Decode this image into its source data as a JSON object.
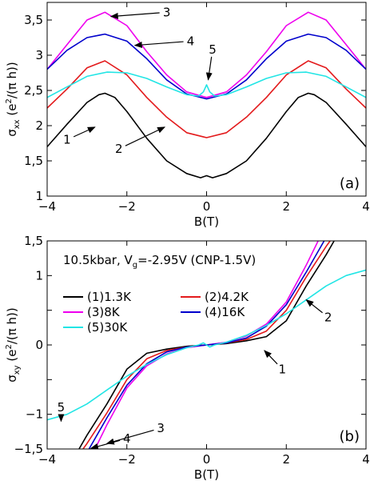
{
  "chart_data": [
    {
      "type": "line",
      "panel_label": "(a)",
      "xlabel": "B(T)",
      "ylabel": "σxx (e²/(π h))",
      "ylabel_parts": {
        "main": "σ",
        "sub": "xx",
        "rest": " (e",
        "sup": "2",
        "tail": "/(π h))"
      },
      "xlim": [
        -4,
        4
      ],
      "ylim": [
        1,
        3.75
      ],
      "xticks": [
        -4,
        -2,
        0,
        2,
        4
      ],
      "xtick_labels": [
        "−4",
        "−2",
        "0",
        "2",
        "4"
      ],
      "yticks": [
        1,
        1.5,
        2,
        2.5,
        3,
        3.5
      ],
      "ytick_labels": [
        "1",
        "1,5",
        "2",
        "2,5",
        "3",
        "3,5"
      ],
      "series": [
        {
          "color": "#000000",
          "x": [
            -4,
            -3.5,
            -3,
            -2.7,
            -2.55,
            -2.3,
            -2,
            -1.5,
            -1,
            -0.5,
            -0.15,
            0,
            0.15,
            0.5,
            1,
            1.5,
            2,
            2.3,
            2.55,
            2.7,
            3,
            3.5,
            4
          ],
          "y": [
            1.7,
            2.02,
            2.33,
            2.44,
            2.46,
            2.4,
            2.2,
            1.82,
            1.5,
            1.32,
            1.26,
            1.29,
            1.26,
            1.32,
            1.5,
            1.82,
            2.2,
            2.4,
            2.46,
            2.44,
            2.33,
            2.02,
            1.7
          ]
        },
        {
          "color": "#e31a1c",
          "x": [
            -4,
            -3.5,
            -3,
            -2.55,
            -2,
            -1.5,
            -1,
            -0.5,
            0,
            0.5,
            1,
            1.5,
            2,
            2.55,
            3,
            3.5,
            4
          ],
          "y": [
            2.25,
            2.52,
            2.82,
            2.92,
            2.72,
            2.4,
            2.12,
            1.9,
            1.83,
            1.9,
            2.12,
            2.4,
            2.72,
            2.92,
            2.82,
            2.52,
            2.25
          ]
        },
        {
          "color": "#ee00ee",
          "x": [
            -4,
            -3.5,
            -3,
            -2.55,
            -2,
            -1.5,
            -1,
            -0.5,
            0,
            0.5,
            1,
            1.5,
            2,
            2.55,
            3,
            3.5,
            4
          ],
          "y": [
            2.8,
            3.15,
            3.5,
            3.61,
            3.42,
            3.05,
            2.72,
            2.48,
            2.4,
            2.48,
            2.72,
            3.05,
            3.42,
            3.61,
            3.5,
            3.15,
            2.8
          ]
        },
        {
          "color": "#0000cc",
          "x": [
            -4,
            -3.5,
            -3,
            -2.55,
            -2,
            -1.5,
            -1,
            -0.5,
            0,
            0.5,
            1,
            1.5,
            2,
            2.55,
            3,
            3.5,
            4
          ],
          "y": [
            2.8,
            3.07,
            3.25,
            3.3,
            3.2,
            2.95,
            2.65,
            2.45,
            2.38,
            2.45,
            2.65,
            2.95,
            3.2,
            3.3,
            3.25,
            3.07,
            2.8
          ]
        },
        {
          "color": "#22e5e5",
          "x": [
            -4,
            -3.5,
            -3,
            -2.5,
            -2,
            -1.5,
            -1,
            -0.5,
            -0.2,
            -0.08,
            0,
            0.08,
            0.2,
            0.5,
            1,
            1.5,
            2,
            2.5,
            3,
            3.5,
            4
          ],
          "y": [
            2.4,
            2.55,
            2.7,
            2.76,
            2.75,
            2.67,
            2.55,
            2.44,
            2.42,
            2.48,
            2.58,
            2.48,
            2.42,
            2.44,
            2.55,
            2.67,
            2.75,
            2.76,
            2.7,
            2.55,
            2.4
          ]
        }
      ],
      "annotations": [
        {
          "text": "1",
          "x": -3.5,
          "y": 1.8,
          "arrow_to": [
            -2.8,
            1.98
          ]
        },
        {
          "text": "2",
          "x": -2.2,
          "y": 1.67,
          "arrow_to": [
            -1.05,
            1.98
          ]
        },
        {
          "text": "3",
          "x": -1.0,
          "y": 3.61,
          "arrow_to": [
            -2.4,
            3.55
          ]
        },
        {
          "text": "4",
          "x": -0.4,
          "y": 3.2,
          "arrow_to": [
            -1.8,
            3.14
          ]
        },
        {
          "text": "5",
          "x": 0.15,
          "y": 3.08,
          "arrow_to": [
            0.04,
            2.65
          ]
        }
      ]
    },
    {
      "type": "line",
      "panel_label": "(b)",
      "title": "10.5kbar, Vg=-2.95V (CNP-1.5V)",
      "title_parts": {
        "pre": "10.5kbar, V",
        "sub": "g",
        "post": "=-2.95V (CNP-1.5V)"
      },
      "xlabel": "B(T)",
      "ylabel": "σxy (e²/(π h))",
      "ylabel_parts": {
        "main": "σ",
        "sub": "xy",
        "rest": " (e",
        "sup": "2",
        "tail": "/(π h))"
      },
      "xlim": [
        -4,
        4
      ],
      "ylim": [
        -1.5,
        1.5
      ],
      "xticks": [
        -4,
        -2,
        0,
        2,
        4
      ],
      "xtick_labels": [
        "−4",
        "−2",
        "0",
        "2",
        "4"
      ],
      "yticks": [
        -1.5,
        -1,
        -0.5,
        0,
        0.5,
        1,
        1.5
      ],
      "ytick_labels": [
        "−1,5",
        "−1",
        "",
        "0",
        "",
        "1",
        "1,5"
      ],
      "legend": {
        "placement": "upper-left",
        "columns": 2
      },
      "series": [
        {
          "name": "(1)1.3K",
          "color": "#000000",
          "x": [
            -3.2,
            -3,
            -2.5,
            -2,
            -1.5,
            -1,
            -0.5,
            0,
            0.5,
            1,
            1.5,
            2,
            2.5,
            3,
            3.2
          ],
          "y": [
            -1.5,
            -1.3,
            -0.85,
            -0.35,
            -0.12,
            -0.06,
            -0.02,
            0,
            0.02,
            0.06,
            0.12,
            0.35,
            0.85,
            1.3,
            1.5
          ]
        },
        {
          "name": "(2)4.2K",
          "color": "#e31a1c",
          "x": [
            -3.1,
            -3,
            -2.5,
            -2,
            -1.5,
            -1,
            -0.5,
            0,
            0.5,
            1,
            1.5,
            2,
            2.5,
            3,
            3.1
          ],
          "y": [
            -1.5,
            -1.42,
            -0.98,
            -0.5,
            -0.2,
            -0.08,
            -0.03,
            0,
            0.03,
            0.08,
            0.2,
            0.5,
            0.98,
            1.42,
            1.5
          ]
        },
        {
          "name": "(3)8K",
          "color": "#ee00ee",
          "x": [
            -2.8,
            -2.5,
            -2,
            -1.5,
            -1,
            -0.5,
            0,
            0.5,
            1,
            1.5,
            2,
            2.5,
            2.8
          ],
          "y": [
            -1.5,
            -1.15,
            -0.62,
            -0.3,
            -0.13,
            -0.04,
            0,
            0.04,
            0.13,
            0.3,
            0.62,
            1.15,
            1.5
          ]
        },
        {
          "name": "(4)16K",
          "color": "#0000cc",
          "x": [
            -2.95,
            -2.5,
            -2,
            -1.5,
            -1,
            -0.5,
            0,
            0.5,
            1,
            1.5,
            2,
            2.5,
            2.95
          ],
          "y": [
            -1.5,
            -1.05,
            -0.58,
            -0.27,
            -0.1,
            -0.03,
            0,
            0.03,
            0.1,
            0.27,
            0.58,
            1.05,
            1.5
          ]
        },
        {
          "name": "(5)30K",
          "color": "#22e5e5",
          "x": [
            -4,
            -3.5,
            -3,
            -2.5,
            -2,
            -1.5,
            -1,
            -0.5,
            -0.2,
            -0.08,
            0,
            0.08,
            0.2,
            0.5,
            1,
            1.5,
            2,
            2.5,
            3,
            3.5,
            4
          ],
          "y": [
            -1.08,
            -1.0,
            -0.85,
            -0.65,
            -0.45,
            -0.28,
            -0.14,
            -0.04,
            0.0,
            0.03,
            0.0,
            -0.03,
            0.0,
            0.04,
            0.14,
            0.28,
            0.45,
            0.65,
            0.85,
            1.0,
            1.08
          ]
        }
      ],
      "annotations": [
        {
          "text": "1",
          "x": 1.9,
          "y": -0.35,
          "arrow_to": [
            1.45,
            -0.08
          ]
        },
        {
          "text": "2",
          "x": 3.05,
          "y": 0.4,
          "arrow_to": [
            2.5,
            0.65
          ]
        },
        {
          "text": "3",
          "x": -1.15,
          "y": -1.2,
          "arrow_to": [
            -2.5,
            -1.42
          ]
        },
        {
          "text": "4",
          "x": -2.0,
          "y": -1.35,
          "arrow_to": [
            -2.9,
            -1.49
          ]
        },
        {
          "text": "5",
          "x": -3.65,
          "y": -0.9,
          "arrow_to": [
            -3.65,
            -1.1
          ]
        }
      ]
    }
  ]
}
